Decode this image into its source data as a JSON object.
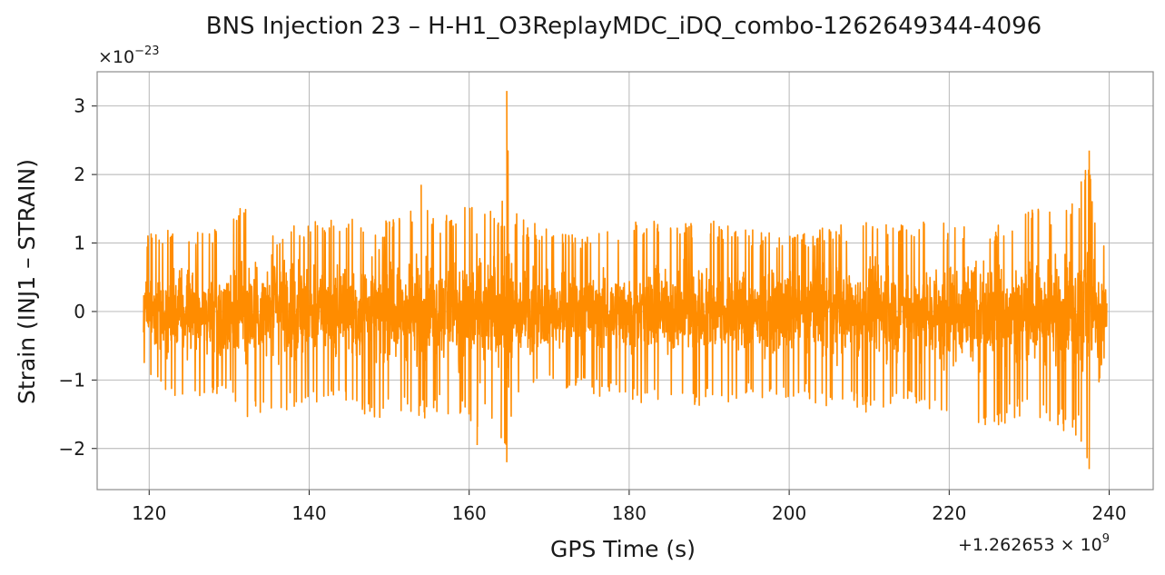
{
  "chart_data": {
    "type": "line",
    "title": "BNS Injection 23 – H-H1_O3ReplayMDC_iDQ_combo-1262649344-4096",
    "xlabel": "GPS Time (s)",
    "ylabel": "Strain (INJ1 – STRAIN)",
    "y_scale_factor": "×10",
    "y_scale_exponent": "−23",
    "x_offset_label": "+1.262653 × 10",
    "x_offset_exponent": "9",
    "xlim": [
      113.5,
      245.5
    ],
    "ylim": [
      -2.6,
      3.5
    ],
    "x_ticks": [
      120,
      140,
      160,
      180,
      200,
      220,
      240
    ],
    "x_tick_labels": [
      "120",
      "140",
      "160",
      "180",
      "200",
      "220",
      "240"
    ],
    "y_ticks": [
      -2,
      -1,
      0,
      1,
      2,
      3
    ],
    "y_tick_labels": [
      "−2",
      "−1",
      "0",
      "1",
      "2",
      "3"
    ],
    "grid": true,
    "line_color": "#ff8c00",
    "series": [
      {
        "x_range": [
          119.3,
          239.7
        ],
        "envelope": {
          "x": [
            119.3,
            122,
            126,
            130,
            132,
            136,
            140,
            144,
            148,
            152,
            154,
            156,
            158,
            160,
            161,
            162,
            163,
            164,
            164.7,
            165.5,
            167,
            170,
            175,
            180,
            185,
            190,
            195,
            200,
            205,
            210,
            215,
            220,
            225,
            230,
            233,
            235,
            236.5,
            237.5,
            238.5,
            239.7
          ],
          "upper": [
            1.1,
            1.2,
            1.2,
            1.3,
            1.7,
            1.2,
            1.3,
            1.4,
            1.3,
            1.4,
            1.85,
            1.4,
            1.5,
            1.6,
            1.4,
            1.5,
            1.6,
            1.4,
            3.22,
            1.5,
            1.35,
            1.2,
            1.1,
            1.35,
            1.3,
            1.35,
            1.2,
            1.1,
            1.25,
            1.3,
            1.35,
            1.3,
            1.2,
            1.5,
            1.55,
            1.7,
            1.9,
            2.35,
            1.2,
            0.9
          ],
          "lower": [
            -0.9,
            -1.2,
            -1.4,
            -1.2,
            -1.55,
            -1.5,
            -1.3,
            -1.4,
            -1.6,
            -1.5,
            -1.6,
            -1.5,
            -1.55,
            -1.6,
            -1.95,
            -1.6,
            -1.7,
            -1.85,
            -2.2,
            -1.3,
            -1.2,
            -1.1,
            -1.2,
            -1.35,
            -1.3,
            -1.4,
            -1.3,
            -1.25,
            -1.4,
            -1.5,
            -1.4,
            -1.55,
            -1.7,
            -1.55,
            -1.7,
            -1.8,
            -1.9,
            -2.3,
            -1.2,
            -0.6
          ]
        }
      }
    ]
  }
}
